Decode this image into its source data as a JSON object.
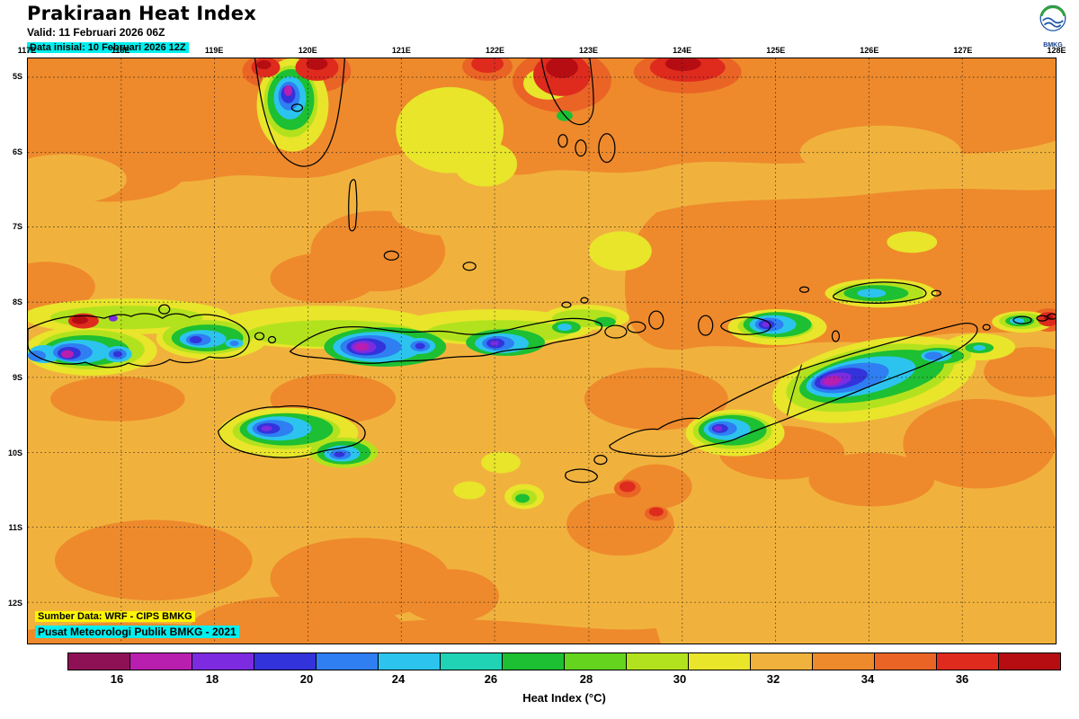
{
  "header": {
    "title": "Prakiraan Heat Index",
    "valid_label": "Valid: 11 Februari 2026 06Z",
    "init_label": "Data inisial: 10 Februari 2026 12Z"
  },
  "logo": {
    "label": "BMKG"
  },
  "map": {
    "lon_labels": [
      "117E",
      "118E",
      "119E",
      "120E",
      "121E",
      "122E",
      "123E",
      "124E",
      "125E",
      "126E",
      "127E",
      "128E"
    ],
    "lat_labels": [
      "5S",
      "6S",
      "7S",
      "8S",
      "9S",
      "10S",
      "11S",
      "12S"
    ],
    "source_line1": "Sumber Data: WRF - CIPS BMKG",
    "source_line2": "Pusat Meteorologi Publik BMKG - 2021"
  },
  "colorbar": {
    "title": "Heat Index (°C)",
    "colors": [
      "#8e1156",
      "#b81fae",
      "#7d2be0",
      "#3333db",
      "#2f7ef2",
      "#2cc4ee",
      "#1fd3b4",
      "#1dbf33",
      "#64d41f",
      "#b2e21e",
      "#e8e52b",
      "#f1b23d",
      "#ee8a2c",
      "#ea6426",
      "#de2b1e",
      "#b50d12"
    ],
    "ticks": [
      {
        "label": "16",
        "pos": 4.98
      },
      {
        "label": "18",
        "pos": 14.57
      },
      {
        "label": "20",
        "pos": 24.07
      },
      {
        "label": "24",
        "pos": 33.3
      },
      {
        "label": "26",
        "pos": 42.62
      },
      {
        "label": "28",
        "pos": 52.22
      },
      {
        "label": "30",
        "pos": 61.63
      },
      {
        "label": "32",
        "pos": 71.04
      },
      {
        "label": "34",
        "pos": 80.54
      },
      {
        "label": "36",
        "pos": 90.05
      }
    ]
  },
  "chart_data": {
    "type": "heatmap",
    "title": "Prakiraan Heat Index",
    "valid_time": "11 Februari 2026 06Z",
    "initial_time": "10 Februari 2026 12Z",
    "region": {
      "lon_min": "117E",
      "lon_max": "128E",
      "lat_min": "5S",
      "lat_max": "12S"
    },
    "legend": {
      "label": "Heat Index (°C)",
      "tick_values": [
        16,
        18,
        20,
        24,
        26,
        28,
        30,
        32,
        34,
        36
      ]
    },
    "field_colors": {
      "base_sea": "#f1b23d",
      "warm": "#ee8a2c",
      "hot": "#de2b1e",
      "cool_patch": "#e8e52b",
      "cold_core": "#b81fae"
    }
  }
}
